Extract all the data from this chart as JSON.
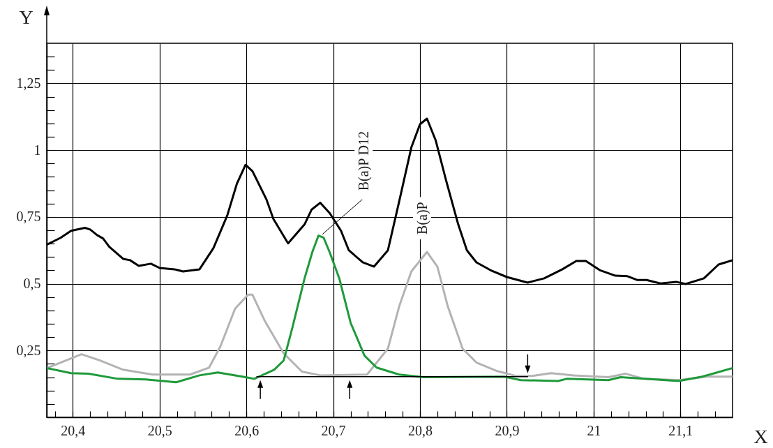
{
  "chart_data": {
    "type": "line",
    "xlabel": "X",
    "ylabel": "Y",
    "xlim": [
      20.37,
      21.16
    ],
    "ylim": [
      0,
      1.4
    ],
    "xticks": [
      {
        "value": 20.38,
        "label": null
      },
      {
        "value": 20.4,
        "label": "20,4"
      },
      {
        "value": 20.42,
        "label": null
      },
      {
        "value": 20.44,
        "label": null
      },
      {
        "value": 20.46,
        "label": null
      },
      {
        "value": 20.48,
        "label": null
      },
      {
        "value": 20.5,
        "label": "20,5"
      },
      {
        "value": 20.52,
        "label": null
      },
      {
        "value": 20.54,
        "label": null
      },
      {
        "value": 20.56,
        "label": null
      },
      {
        "value": 20.58,
        "label": null
      },
      {
        "value": 20.6,
        "label": "20,6"
      },
      {
        "value": 20.62,
        "label": null
      },
      {
        "value": 20.64,
        "label": null
      },
      {
        "value": 20.66,
        "label": null
      },
      {
        "value": 20.68,
        "label": null
      },
      {
        "value": 20.7,
        "label": "20,7"
      },
      {
        "value": 20.72,
        "label": null
      },
      {
        "value": 20.74,
        "label": null
      },
      {
        "value": 20.76,
        "label": null
      },
      {
        "value": 20.78,
        "label": null
      },
      {
        "value": 20.8,
        "label": "20,8"
      },
      {
        "value": 20.82,
        "label": null
      },
      {
        "value": 20.84,
        "label": null
      },
      {
        "value": 20.86,
        "label": null
      },
      {
        "value": 20.88,
        "label": null
      },
      {
        "value": 20.9,
        "label": "20,9"
      },
      {
        "value": 20.92,
        "label": null
      },
      {
        "value": 20.94,
        "label": null
      },
      {
        "value": 20.96,
        "label": null
      },
      {
        "value": 20.98,
        "label": null
      },
      21,
      {
        "value": 21.02,
        "label": null
      },
      {
        "value": 21.04,
        "label": null
      },
      {
        "value": 21.06,
        "label": null
      },
      {
        "value": 21.08,
        "label": null
      },
      {
        "value": 21.1,
        "label": "21,1"
      },
      {
        "value": 21.12,
        "label": null
      },
      {
        "value": 21.14,
        "label": null
      }
    ],
    "yticks": [
      {
        "value": 0.05,
        "label": null
      },
      {
        "value": 0.1,
        "label": null
      },
      {
        "value": 0.15,
        "label": null
      },
      {
        "value": 0.2,
        "label": null
      },
      {
        "value": 0.25,
        "label": "0,25"
      },
      {
        "value": 0.3,
        "label": null
      },
      {
        "value": 0.35,
        "label": null
      },
      {
        "value": 0.4,
        "label": null
      },
      {
        "value": 0.45,
        "label": null
      },
      {
        "value": 0.5,
        "label": "0,5"
      },
      {
        "value": 0.55,
        "label": null
      },
      {
        "value": 0.6,
        "label": null
      },
      {
        "value": 0.65,
        "label": null
      },
      {
        "value": 0.7,
        "label": null
      },
      {
        "value": 0.75,
        "label": "0,75"
      },
      {
        "value": 0.8,
        "label": null
      },
      {
        "value": 0.85,
        "label": null
      },
      {
        "value": 0.9,
        "label": null
      },
      {
        "value": 0.95,
        "label": null
      },
      1,
      {
        "value": 1.05,
        "label": null
      },
      {
        "value": 1.1,
        "label": null
      },
      {
        "value": 1.15,
        "label": null
      },
      {
        "value": 1.2,
        "label": null
      },
      {
        "value": 1.25,
        "label": "1,25"
      },
      {
        "value": 1.3,
        "label": null
      },
      {
        "value": 1.35,
        "label": null
      }
    ],
    "grid": true,
    "line_style": "solid",
    "series": [
      {
        "color": "#000000",
        "x": [
          20.37,
          20.386,
          20.398,
          20.414,
          20.42,
          20.428,
          20.435,
          20.442,
          20.458,
          20.466,
          20.476,
          20.49,
          20.5,
          20.517,
          20.527,
          20.546,
          20.562,
          20.578,
          20.589,
          20.599,
          20.607,
          20.613,
          20.623,
          20.631,
          20.648,
          20.667,
          20.675,
          20.685,
          20.696,
          20.709,
          20.718,
          20.734,
          20.747,
          20.763,
          20.776,
          20.79,
          20.8,
          20.808,
          20.818,
          20.83,
          20.844,
          20.854,
          20.865,
          20.881,
          20.9,
          20.924,
          20.943,
          20.964,
          20.98,
          20.991,
          21.007,
          21.025,
          21.039,
          21.05,
          21.061,
          21.077,
          21.095,
          21.106,
          21.127,
          21.144,
          21.16
        ],
        "values": [
          0.646,
          0.672,
          0.698,
          0.709,
          0.703,
          0.682,
          0.669,
          0.638,
          0.593,
          0.588,
          0.567,
          0.575,
          0.559,
          0.554,
          0.546,
          0.554,
          0.633,
          0.756,
          0.874,
          0.945,
          0.921,
          0.882,
          0.816,
          0.743,
          0.651,
          0.722,
          0.777,
          0.803,
          0.764,
          0.698,
          0.625,
          0.58,
          0.564,
          0.625,
          0.808,
          1.01,
          1.097,
          1.118,
          1.037,
          0.887,
          0.722,
          0.625,
          0.58,
          0.551,
          0.525,
          0.504,
          0.52,
          0.554,
          0.585,
          0.585,
          0.551,
          0.53,
          0.528,
          0.514,
          0.514,
          0.501,
          0.507,
          0.499,
          0.52,
          0.572,
          0.588
        ]
      },
      {
        "color": "#b3b3b3",
        "x": [
          20.37,
          20.41,
          20.431,
          20.458,
          20.492,
          20.535,
          20.557,
          20.57,
          20.587,
          20.602,
          20.607,
          20.621,
          20.643,
          20.664,
          20.685,
          20.739,
          20.763,
          20.776,
          20.79,
          20.808,
          20.82,
          20.832,
          20.849,
          20.865,
          20.889,
          20.91,
          20.929,
          20.951,
          20.977,
          21.017,
          21.037,
          21.058,
          21.098,
          21.13,
          21.16
        ],
        "values": [
          0.184,
          0.236,
          0.213,
          0.178,
          0.16,
          0.16,
          0.186,
          0.265,
          0.407,
          0.459,
          0.459,
          0.362,
          0.239,
          0.171,
          0.157,
          0.16,
          0.257,
          0.415,
          0.546,
          0.619,
          0.564,
          0.415,
          0.257,
          0.205,
          0.173,
          0.155,
          0.155,
          0.165,
          0.157,
          0.15,
          0.163,
          0.144,
          0.139,
          0.152,
          0.152
        ]
      },
      {
        "color": "#1e9a3a",
        "x": [
          20.37,
          20.398,
          20.418,
          20.452,
          20.484,
          20.519,
          20.546,
          20.567,
          20.599,
          20.609,
          20.632,
          20.643,
          20.653,
          20.667,
          20.676,
          20.683,
          20.689,
          20.696,
          20.707,
          20.72,
          20.736,
          20.75,
          20.776,
          20.804,
          20.897,
          20.916,
          20.959,
          20.969,
          21.017,
          21.031,
          21.098,
          21.125,
          21.16
        ],
        "values": [
          0.184,
          0.165,
          0.163,
          0.144,
          0.142,
          0.131,
          0.157,
          0.168,
          0.15,
          0.144,
          0.178,
          0.213,
          0.336,
          0.52,
          0.619,
          0.68,
          0.672,
          0.617,
          0.52,
          0.354,
          0.231,
          0.186,
          0.16,
          0.15,
          0.152,
          0.139,
          0.136,
          0.144,
          0.139,
          0.15,
          0.136,
          0.152,
          0.184
        ]
      },
      {
        "color": "#000000",
        "x": [
          20.612,
          20.715,
          20.924
        ],
        "values": [
          0.152,
          0.152,
          0.152
        ]
      }
    ],
    "annotations": [
      {
        "text": "B(a)P D12",
        "x": 20.686,
        "y": 0.68
      },
      {
        "text": "B(a)P",
        "x": 20.808,
        "y": 0.62
      }
    ]
  }
}
